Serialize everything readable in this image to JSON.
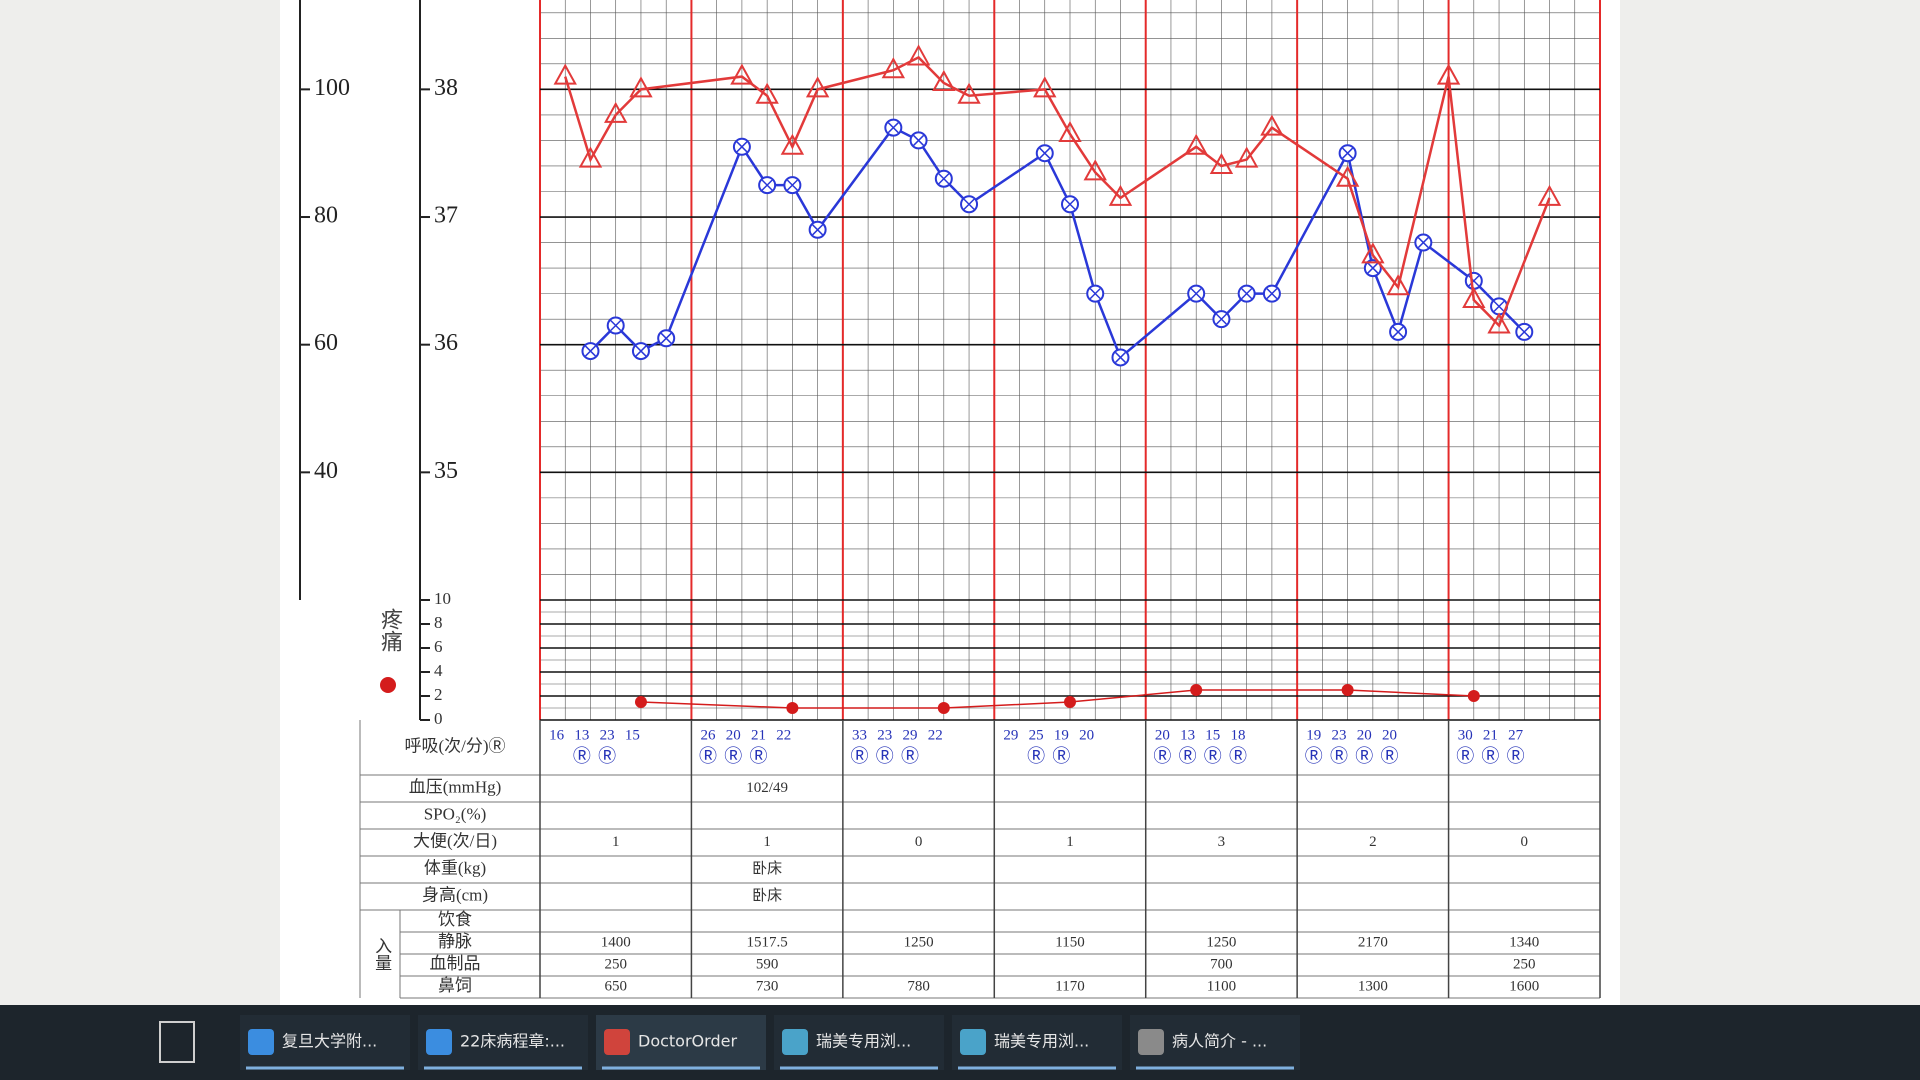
{
  "chart_data": [
    {
      "type": "line",
      "xlim": [
        0,
        42
      ],
      "ylim": [
        34,
        38.7
      ],
      "yticks": [
        35,
        36,
        37,
        38
      ],
      "y2lim": [
        20,
        114
      ],
      "y2ticks": [
        40,
        60,
        80,
        100
      ],
      "grid": true,
      "series": [
        {
          "color": "#2a38d8",
          "marker": "circle-x",
          "x": [
            2,
            3,
            4,
            5,
            8,
            9,
            10,
            11,
            14,
            15,
            16,
            17,
            20,
            21,
            22,
            23,
            26,
            27,
            28,
            29,
            32,
            33,
            34,
            35,
            37,
            38,
            39
          ],
          "values": [
            35.95,
            36.15,
            35.95,
            36.05,
            37.55,
            37.25,
            37.25,
            36.9,
            37.7,
            37.6,
            37.3,
            37.1,
            37.5,
            37.1,
            36.4,
            35.9,
            36.4,
            36.2,
            36.4,
            36.4,
            37.5,
            36.6,
            36.1,
            36.8,
            36.5,
            36.3,
            36.1
          ]
        },
        {
          "color": "#e23a3a",
          "marker": "triangle",
          "axis": "y2",
          "x": [
            1,
            2,
            3,
            4,
            8,
            9,
            10,
            11,
            14,
            15,
            16,
            17,
            20,
            21,
            22,
            23,
            26,
            27,
            28,
            29,
            32,
            33,
            34,
            36,
            37,
            38,
            40
          ],
          "values": [
            102,
            89,
            96,
            100,
            102,
            99,
            91,
            100,
            103,
            105,
            101,
            99,
            100,
            93,
            87,
            83,
            91,
            88,
            89,
            94,
            86,
            74,
            69,
            102,
            67,
            63,
            83
          ]
        }
      ]
    },
    {
      "type": "line",
      "ylabel": "疼痛",
      "xlim": [
        0,
        42
      ],
      "ylim": [
        0,
        10
      ],
      "yticks": [
        0,
        2,
        4,
        6,
        8,
        10
      ],
      "grid": true,
      "series": [
        {
          "color": "#d41c1c",
          "marker": "dot",
          "x": [
            4,
            10,
            16,
            21,
            26,
            32,
            37
          ],
          "values": [
            1.5,
            1,
            1,
            1.5,
            2.5,
            2.5,
            2
          ]
        }
      ]
    }
  ],
  "table": {
    "respiration": {
      "label": "呼吸(次/分)Ⓡ",
      "values": [
        [
          16,
          13,
          23,
          15
        ],
        [
          26,
          20,
          21,
          22
        ],
        [
          33,
          23,
          29,
          22
        ],
        [
          29,
          25,
          19,
          20
        ],
        [
          20,
          13,
          15,
          18
        ],
        [
          19,
          23,
          20,
          20
        ],
        [
          30,
          21,
          27
        ]
      ],
      "marks": [
        [
          null,
          "Ⓡ",
          "Ⓡ",
          null
        ],
        [
          "Ⓡ",
          "Ⓡ",
          "Ⓡ",
          null
        ],
        [
          "Ⓡ",
          "Ⓡ",
          "Ⓡ",
          null
        ],
        [
          null,
          "Ⓡ",
          "Ⓡ",
          null
        ],
        [
          "Ⓡ",
          "Ⓡ",
          "Ⓡ",
          "Ⓡ"
        ],
        [
          "Ⓡ",
          "Ⓡ",
          "Ⓡ",
          "Ⓡ"
        ],
        [
          "Ⓡ",
          "Ⓡ",
          "Ⓡ"
        ]
      ]
    },
    "rows": [
      {
        "label": "血压(mmHg)",
        "cells": [
          null,
          "102/49",
          null,
          null,
          null,
          null,
          null
        ]
      },
      {
        "label": "SPO₂(%)",
        "cells": [
          null,
          null,
          null,
          null,
          null,
          null,
          null
        ]
      },
      {
        "label": "大便(次/日)",
        "cells": [
          1,
          1,
          0,
          1,
          3,
          2,
          0
        ]
      },
      {
        "label": "体重(kg)",
        "cells": [
          null,
          "卧床",
          null,
          null,
          null,
          null,
          null
        ]
      },
      {
        "label": "身高(cm)",
        "cells": [
          null,
          "卧床",
          null,
          null,
          null,
          null,
          null
        ]
      }
    ],
    "intake": {
      "label": "入量",
      "rows": [
        {
          "label": "饮食",
          "cells": [
            null,
            null,
            null,
            null,
            null,
            null,
            null
          ]
        },
        {
          "label": "静脉",
          "cells": [
            1400,
            1517.5,
            1250,
            1150,
            1250,
            2170,
            1340
          ]
        },
        {
          "label": "血制品",
          "cells": [
            250,
            590,
            null,
            null,
            700,
            null,
            250
          ]
        },
        {
          "label": "鼻饲",
          "cells": [
            650,
            730,
            780,
            1170,
            1100,
            1300,
            1600
          ]
        }
      ]
    }
  },
  "taskbar": {
    "items": [
      "复旦大学附...",
      "22床病程章:...",
      "DoctorOrder",
      "瑞美专用浏...",
      "瑞美专用浏...",
      "病人简介 - ..."
    ]
  }
}
